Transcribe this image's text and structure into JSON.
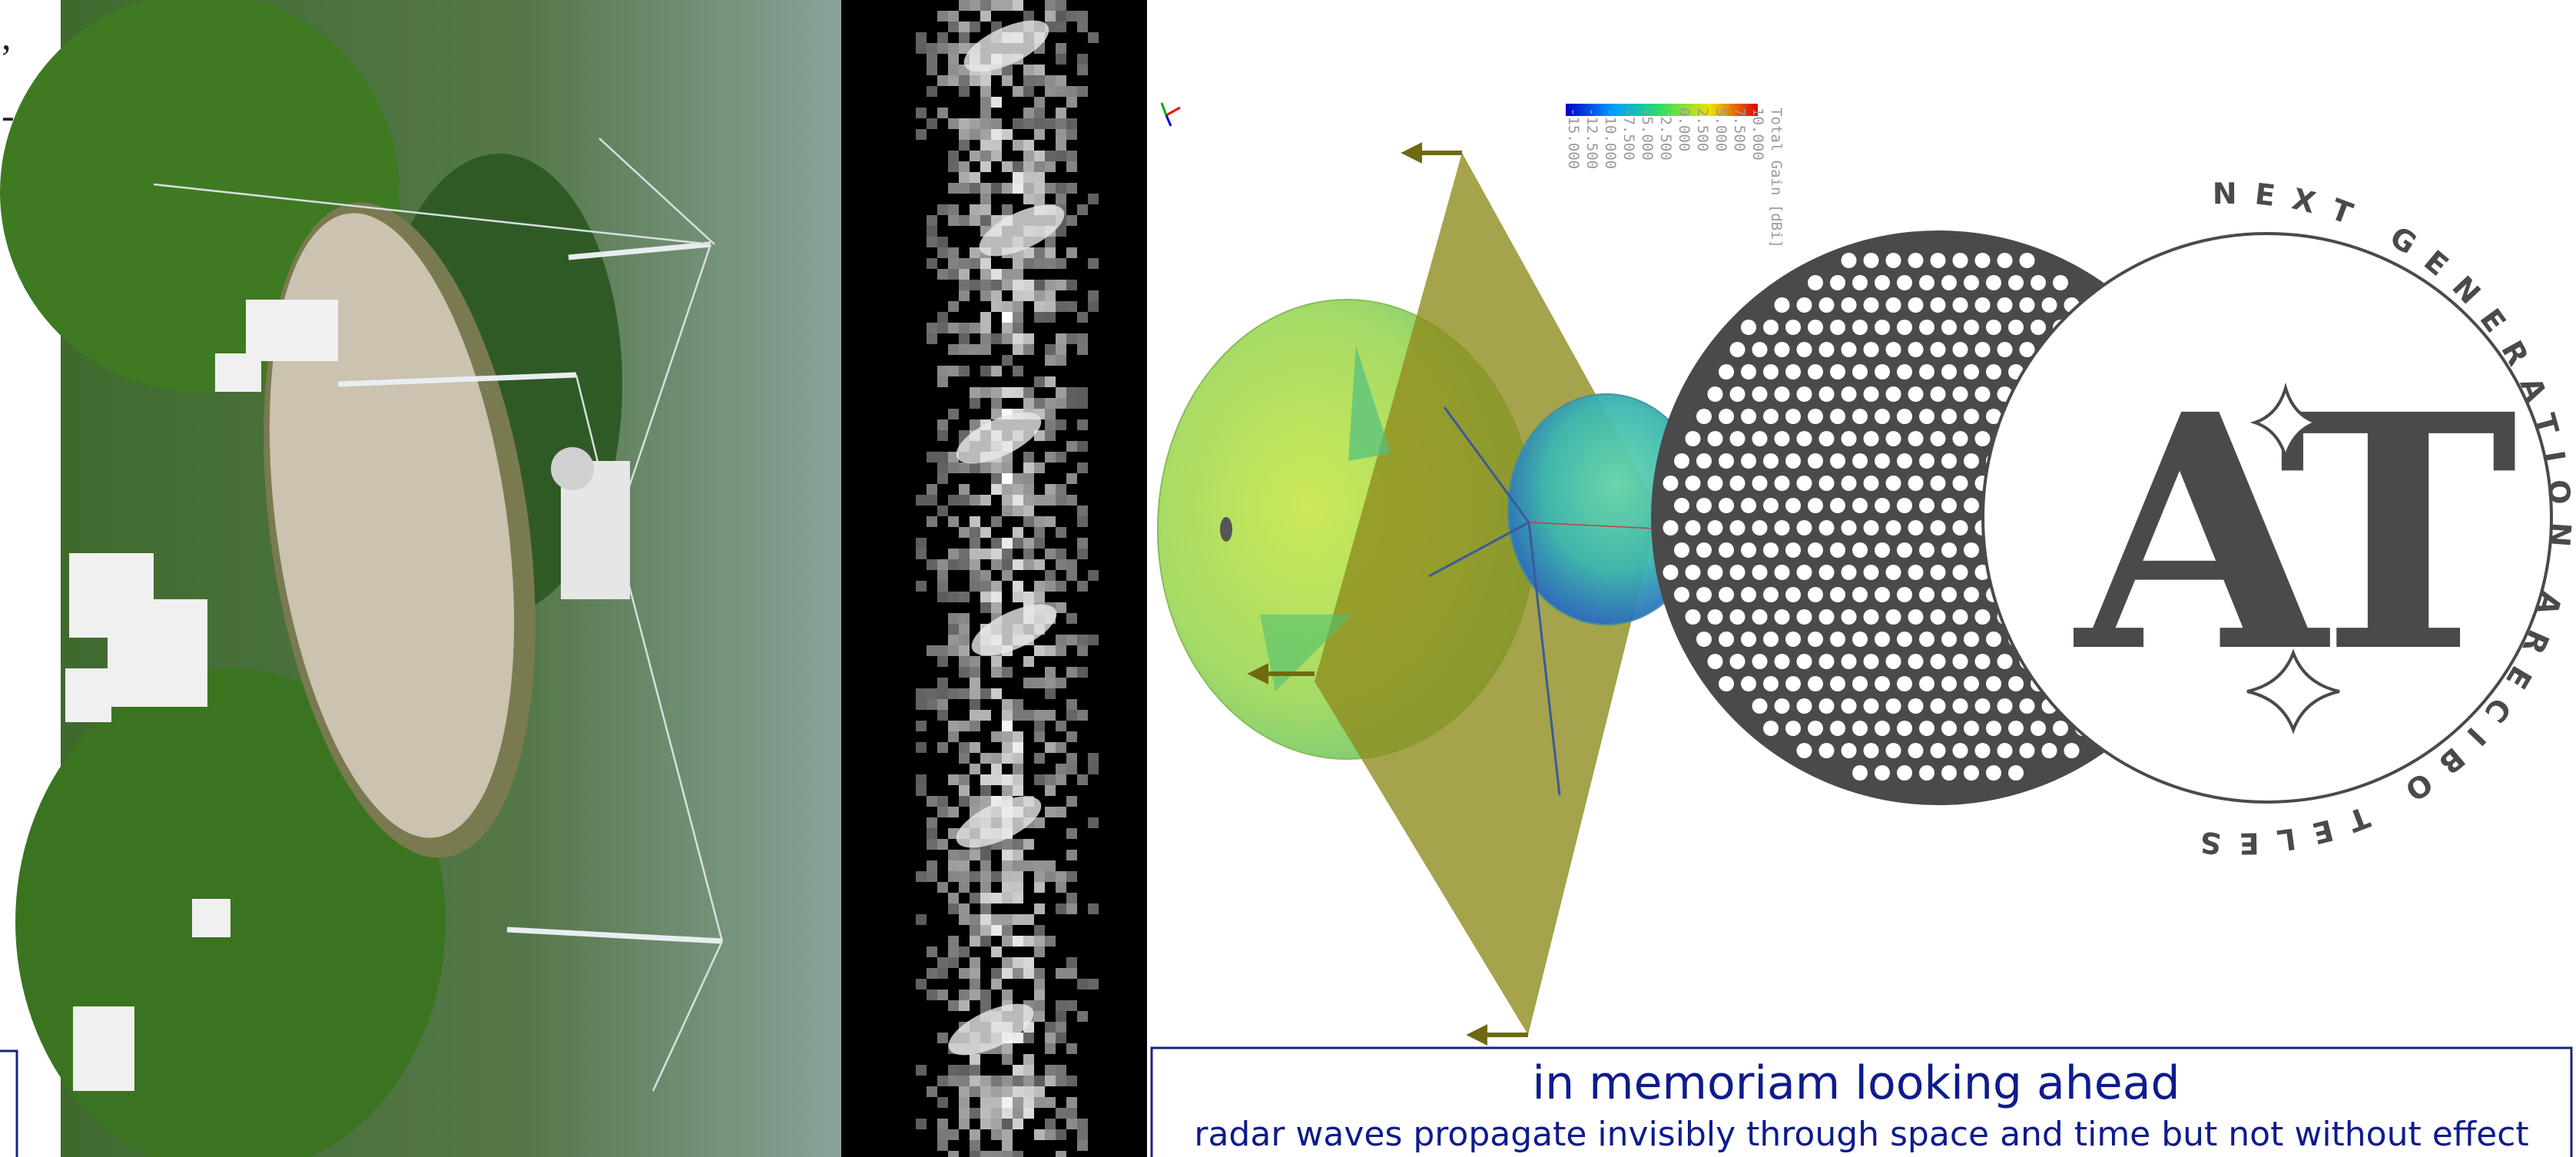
{
  "left_fragments": [
    ",",
    "-",
    "-"
  ],
  "colorbar": {
    "title": "Total Gain [dBi]",
    "labels": [
      "10.000",
      "7.500",
      "5.000",
      "2.500",
      "0.000",
      "-2.500",
      "-5.000",
      "-7.500",
      "-10.000",
      "-12.500",
      "-15.000"
    ]
  },
  "logo": {
    "ring_text": "NEXT GENERATION ARECIBO TELESCOPE",
    "monogram": "AT"
  },
  "caption": {
    "title": "in memoriam looking ahead",
    "subtitle": "radar waves propagate invisibly through space and time but not without effect"
  }
}
